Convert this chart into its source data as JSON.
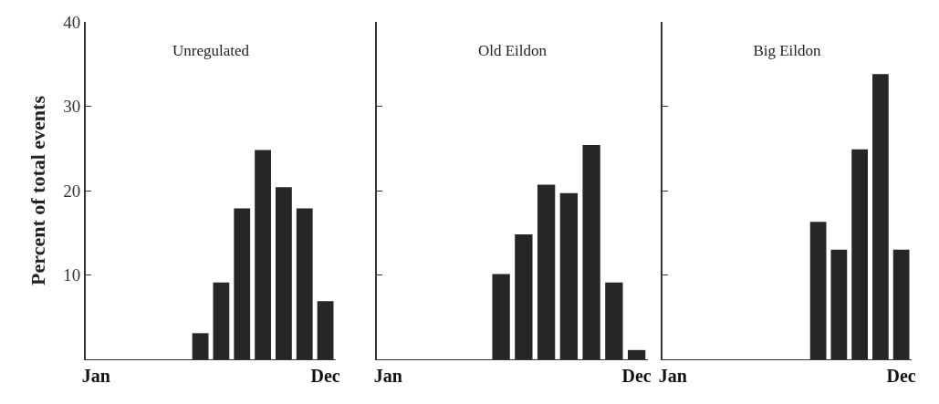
{
  "chart_data": [
    {
      "type": "bar",
      "title": "Unregulated",
      "ylabel": "Percent of total events",
      "categories": [
        "Jan",
        null,
        null,
        null,
        null,
        null,
        null,
        null,
        null,
        null,
        null,
        "Dec"
      ],
      "values": [
        0,
        0,
        0,
        0,
        0,
        3.1,
        9.1,
        17.9,
        24.8,
        20.4,
        17.9,
        6.9
      ],
      "color": "#262626",
      "ylim": [
        0,
        40
      ],
      "yticks": [
        10,
        20,
        30,
        40
      ]
    },
    {
      "type": "bar",
      "title": "Old Eildon",
      "categories": [
        "Jan",
        null,
        null,
        null,
        null,
        null,
        null,
        null,
        null,
        null,
        null,
        "Dec"
      ],
      "values": [
        0,
        0,
        0,
        0,
        0,
        10.1,
        14.8,
        20.7,
        19.7,
        25.4,
        9.1,
        1.1
      ],
      "color": "#262626",
      "ylim": [
        0,
        40
      ],
      "yticks": [
        10,
        20,
        30,
        40
      ],
      "tick_labels": "x"
    },
    {
      "type": "bar",
      "title": "Big Eildon",
      "categories": [
        "Jan",
        null,
        null,
        null,
        null,
        null,
        null,
        null,
        null,
        null,
        null,
        "Dec"
      ],
      "values": [
        0,
        0,
        0,
        0,
        0,
        0,
        0,
        16.3,
        13.0,
        24.9,
        33.8,
        13.0
      ],
      "color": "#262626",
      "ylim": [
        0,
        40
      ],
      "yticks": [
        10,
        20,
        30,
        40
      ],
      "tick_labels": "x"
    }
  ]
}
